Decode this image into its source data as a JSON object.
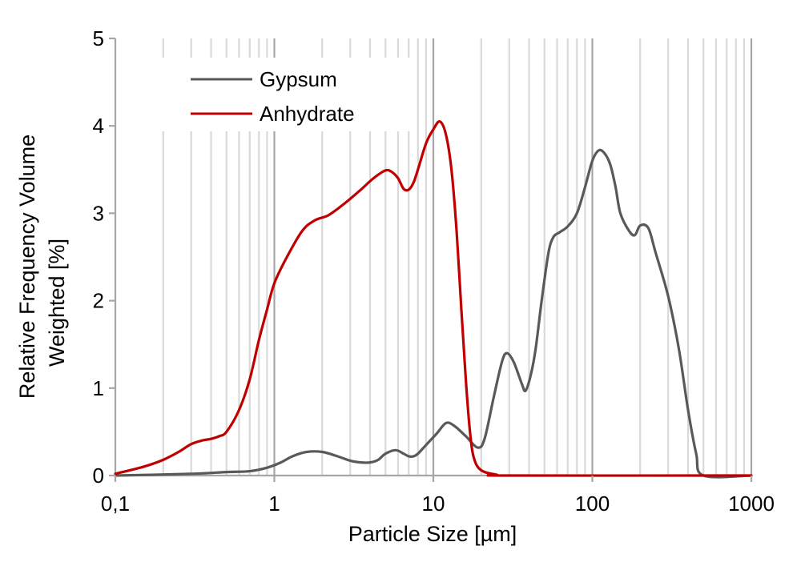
{
  "chart_data": {
    "type": "line",
    "title": "",
    "xlabel": "Particle Size [µm]",
    "ylabel_lines": [
      "Relative Frequency Volume",
      "Weighted [%]"
    ],
    "x_scale": "log",
    "xlim": [
      0.1,
      1000
    ],
    "ylim": [
      0,
      5
    ],
    "x_ticks": [
      {
        "value": 0.1,
        "label": "0,1"
      },
      {
        "value": 1,
        "label": "1"
      },
      {
        "value": 10,
        "label": "10"
      },
      {
        "value": 100,
        "label": "100"
      },
      {
        "value": 1000,
        "label": "1000"
      }
    ],
    "y_ticks": [
      {
        "value": 0,
        "label": "0"
      },
      {
        "value": 1,
        "label": "1"
      },
      {
        "value": 2,
        "label": "2"
      },
      {
        "value": 3,
        "label": "3"
      },
      {
        "value": 4,
        "label": "4"
      },
      {
        "value": 5,
        "label": "5"
      }
    ],
    "grid": "vertical log gridlines",
    "legend": "top-left",
    "series": [
      {
        "name": "Gypsum",
        "color": "#595959",
        "points": [
          [
            0.1,
            0.0
          ],
          [
            0.3,
            0.02
          ],
          [
            0.5,
            0.04
          ],
          [
            0.7,
            0.05
          ],
          [
            0.9,
            0.09
          ],
          [
            1.1,
            0.15
          ],
          [
            1.3,
            0.22
          ],
          [
            1.6,
            0.27
          ],
          [
            2.0,
            0.27
          ],
          [
            2.5,
            0.22
          ],
          [
            3.0,
            0.17
          ],
          [
            3.5,
            0.15
          ],
          [
            4.0,
            0.15
          ],
          [
            4.5,
            0.18
          ],
          [
            5.0,
            0.25
          ],
          [
            5.8,
            0.29
          ],
          [
            6.5,
            0.25
          ],
          [
            7.0,
            0.22
          ],
          [
            7.5,
            0.22
          ],
          [
            8.0,
            0.25
          ],
          [
            9.0,
            0.35
          ],
          [
            10.5,
            0.48
          ],
          [
            12.0,
            0.6
          ],
          [
            13.5,
            0.57
          ],
          [
            16.0,
            0.45
          ],
          [
            19.0,
            0.32
          ],
          [
            21.0,
            0.42
          ],
          [
            24.0,
            0.9
          ],
          [
            27.0,
            1.3
          ],
          [
            29.0,
            1.4
          ],
          [
            32.0,
            1.3
          ],
          [
            36.0,
            1.05
          ],
          [
            38.0,
            0.97
          ],
          [
            41.0,
            1.15
          ],
          [
            44.0,
            1.45
          ],
          [
            48.0,
            2.0
          ],
          [
            53.0,
            2.55
          ],
          [
            57.0,
            2.73
          ],
          [
            62.0,
            2.78
          ],
          [
            70.0,
            2.85
          ],
          [
            80.0,
            3.0
          ],
          [
            90.0,
            3.3
          ],
          [
            100.0,
            3.6
          ],
          [
            110.0,
            3.72
          ],
          [
            120.0,
            3.68
          ],
          [
            130.0,
            3.55
          ],
          [
            140.0,
            3.3
          ],
          [
            150.0,
            3.0
          ],
          [
            170.0,
            2.8
          ],
          [
            185.0,
            2.75
          ],
          [
            200.0,
            2.86
          ],
          [
            225.0,
            2.83
          ],
          [
            250.0,
            2.55
          ],
          [
            300.0,
            2.05
          ],
          [
            350.0,
            1.45
          ],
          [
            400.0,
            0.75
          ],
          [
            450.0,
            0.25
          ],
          [
            500.0,
            0.0
          ],
          [
            1000.0,
            0.0
          ]
        ]
      },
      {
        "name": "Anhydrate",
        "color": "#C00000",
        "points": [
          [
            0.1,
            0.02
          ],
          [
            0.15,
            0.1
          ],
          [
            0.2,
            0.18
          ],
          [
            0.25,
            0.27
          ],
          [
            0.3,
            0.36
          ],
          [
            0.35,
            0.4
          ],
          [
            0.4,
            0.42
          ],
          [
            0.45,
            0.45
          ],
          [
            0.5,
            0.5
          ],
          [
            0.6,
            0.75
          ],
          [
            0.7,
            1.1
          ],
          [
            0.8,
            1.55
          ],
          [
            0.9,
            1.9
          ],
          [
            1.0,
            2.2
          ],
          [
            1.2,
            2.5
          ],
          [
            1.5,
            2.8
          ],
          [
            1.8,
            2.92
          ],
          [
            2.2,
            2.98
          ],
          [
            2.8,
            3.12
          ],
          [
            3.5,
            3.27
          ],
          [
            4.2,
            3.4
          ],
          [
            5.0,
            3.49
          ],
          [
            5.5,
            3.47
          ],
          [
            6.0,
            3.4
          ],
          [
            6.5,
            3.28
          ],
          [
            7.0,
            3.27
          ],
          [
            7.5,
            3.35
          ],
          [
            8.0,
            3.5
          ],
          [
            9.0,
            3.8
          ],
          [
            10.0,
            3.96
          ],
          [
            11.0,
            4.05
          ],
          [
            12.0,
            3.9
          ],
          [
            13.0,
            3.5
          ],
          [
            14.0,
            2.8
          ],
          [
            15.0,
            1.9
          ],
          [
            16.0,
            1.1
          ],
          [
            17.0,
            0.5
          ],
          [
            18.0,
            0.2
          ],
          [
            20.0,
            0.06
          ],
          [
            25.0,
            0.01
          ],
          [
            30.0,
            0.0
          ],
          [
            1000.0,
            0.0
          ]
        ]
      }
    ]
  }
}
